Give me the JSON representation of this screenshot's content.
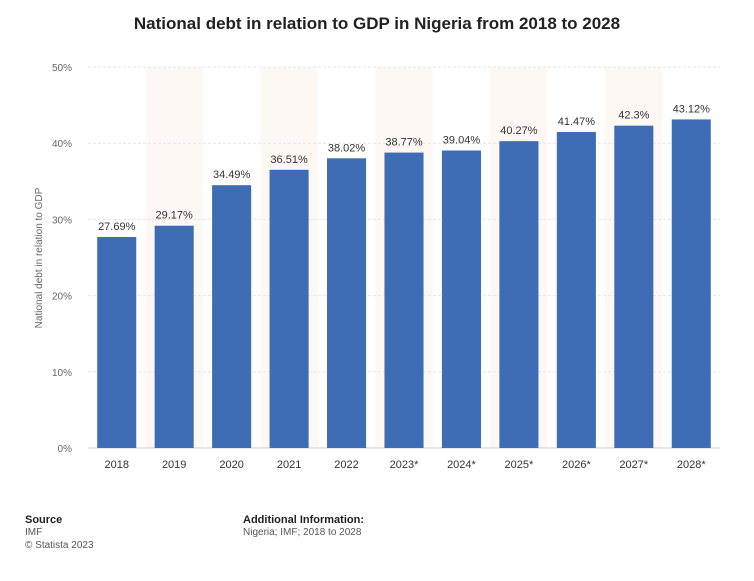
{
  "chart_data": {
    "type": "bar",
    "title": "National debt in relation to GDP in Nigeria from 2018 to 2028",
    "xlabel": "",
    "ylabel": "National debt in relation to GDP",
    "categories": [
      "2018",
      "2019",
      "2020",
      "2021",
      "2022",
      "2023*",
      "2024*",
      "2025*",
      "2026*",
      "2027*",
      "2028*"
    ],
    "values": [
      27.69,
      29.17,
      34.49,
      36.51,
      38.02,
      38.77,
      39.04,
      40.27,
      41.47,
      42.3,
      43.12
    ],
    "value_labels": [
      "27.69%",
      "29.17%",
      "34.49%",
      "36.51%",
      "38.02%",
      "38.77%",
      "39.04%",
      "40.27%",
      "41.47%",
      "42.3%",
      "43.12%"
    ],
    "ylim": [
      0,
      50
    ],
    "yticks": [
      0,
      10,
      20,
      30,
      40,
      50
    ],
    "ytick_labels": [
      "0%",
      "10%",
      "20%",
      "30%",
      "40%",
      "50%"
    ],
    "grid": true,
    "bar_color": "#3f6db5",
    "band_color": "#fdf8f4"
  },
  "footer": {
    "source_heading": "Source",
    "source_name": "IMF",
    "copyright": "© Statista 2023",
    "additional_heading": "Additional Information:",
    "additional_text": "Nigeria; IMF; 2018 to 2028"
  }
}
